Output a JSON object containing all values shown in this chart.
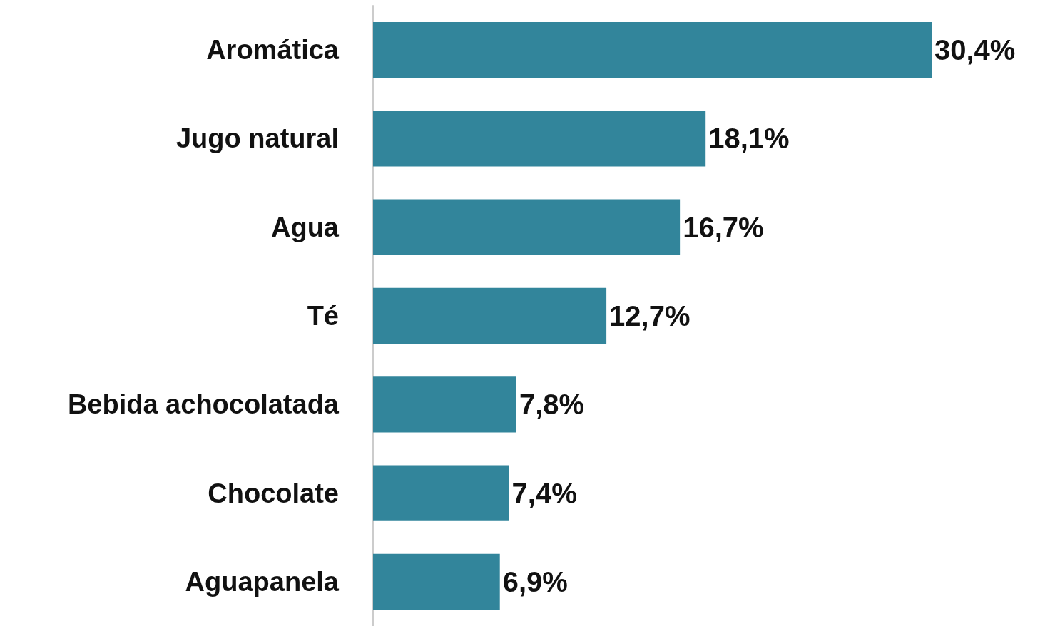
{
  "chart_data": {
    "type": "bar",
    "orientation": "horizontal",
    "categories": [
      "Aromática",
      "Jugo natural",
      "Agua",
      "Té",
      "Bebida achocolatada",
      "Chocolate",
      "Aguapanela"
    ],
    "values": [
      30.4,
      18.1,
      16.7,
      12.7,
      7.8,
      7.4,
      6.9
    ],
    "color": "#32859b",
    "value_labels": [
      "30,4%",
      "18,1%",
      "16,7%",
      "12,7%",
      "7,8%",
      "7,4%",
      "6,9%"
    ]
  }
}
